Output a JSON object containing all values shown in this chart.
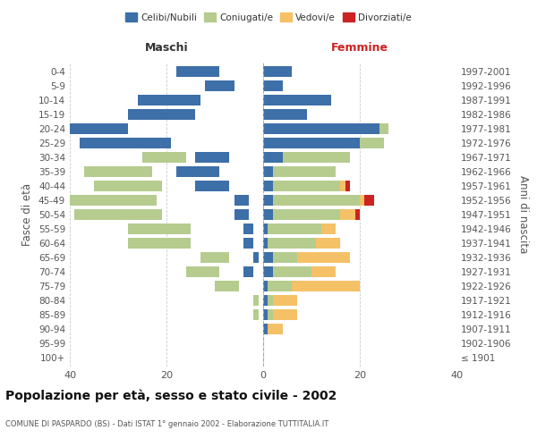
{
  "age_groups": [
    "100+",
    "95-99",
    "90-94",
    "85-89",
    "80-84",
    "75-79",
    "70-74",
    "65-69",
    "60-64",
    "55-59",
    "50-54",
    "45-49",
    "40-44",
    "35-39",
    "30-34",
    "25-29",
    "20-24",
    "15-19",
    "10-14",
    "5-9",
    "0-4"
  ],
  "birth_years": [
    "≤ 1901",
    "1902-1906",
    "1907-1911",
    "1912-1916",
    "1917-1921",
    "1922-1926",
    "1927-1931",
    "1932-1936",
    "1937-1941",
    "1942-1946",
    "1947-1951",
    "1952-1956",
    "1957-1961",
    "1962-1966",
    "1967-1971",
    "1972-1976",
    "1977-1981",
    "1982-1986",
    "1987-1991",
    "1992-1996",
    "1997-2001"
  ],
  "male": {
    "celibi": [
      0,
      0,
      0,
      0,
      0,
      0,
      2,
      1,
      2,
      2,
      3,
      3,
      7,
      9,
      7,
      19,
      28,
      14,
      13,
      6,
      9
    ],
    "coniugati": [
      0,
      0,
      0,
      1,
      1,
      5,
      7,
      6,
      13,
      13,
      18,
      19,
      14,
      14,
      9,
      2,
      0,
      0,
      0,
      0,
      0
    ],
    "vedovi": [
      0,
      0,
      0,
      0,
      0,
      1,
      1,
      0,
      1,
      0,
      0,
      0,
      0,
      0,
      0,
      1,
      0,
      0,
      0,
      0,
      0
    ],
    "divorziati": [
      0,
      0,
      0,
      0,
      0,
      0,
      0,
      0,
      0,
      0,
      1,
      0,
      1,
      1,
      0,
      0,
      0,
      0,
      0,
      0,
      0
    ]
  },
  "female": {
    "nubili": [
      0,
      0,
      1,
      1,
      1,
      1,
      2,
      2,
      1,
      1,
      2,
      2,
      2,
      2,
      4,
      20,
      24,
      9,
      14,
      4,
      6
    ],
    "coniugate": [
      0,
      0,
      0,
      1,
      1,
      5,
      8,
      5,
      10,
      11,
      14,
      18,
      14,
      13,
      14,
      5,
      2,
      0,
      0,
      0,
      0
    ],
    "vedove": [
      0,
      0,
      3,
      5,
      5,
      14,
      5,
      11,
      5,
      3,
      3,
      1,
      1,
      0,
      0,
      0,
      0,
      0,
      0,
      0,
      0
    ],
    "divorziate": [
      0,
      0,
      0,
      0,
      0,
      0,
      0,
      0,
      0,
      0,
      1,
      2,
      1,
      0,
      0,
      0,
      0,
      0,
      0,
      0,
      0
    ]
  },
  "colors": {
    "celibi": "#3d6fa8",
    "coniugati": "#b5cc8e",
    "vedovi": "#f5c167",
    "divorziati": "#cc2222"
  },
  "title": "Popolazione per età, sesso e stato civile - 2002",
  "subtitle": "COMUNE DI PASPARDO (BS) - Dati ISTAT 1° gennaio 2002 - Elaborazione TUTTITALIA.IT",
  "xlabel_left": "Maschi",
  "xlabel_right": "Femmine",
  "ylabel_left": "Fasce di età",
  "ylabel_right": "Anni di nascita",
  "xlim": 40,
  "background_color": "#ffffff",
  "grid_color": "#cccccc"
}
